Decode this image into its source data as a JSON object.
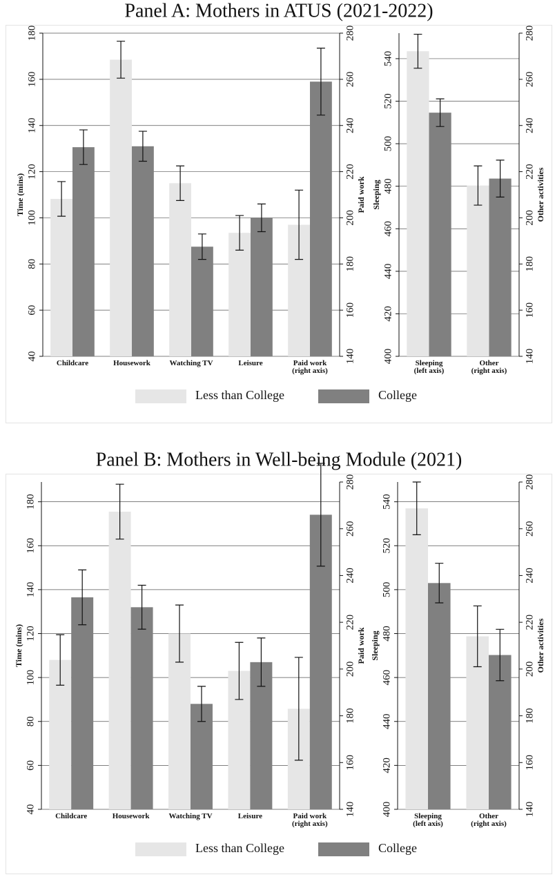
{
  "chart_data": [
    {
      "type": "bar",
      "title": "Panel A: Mothers in ATUS (2021-2022)",
      "categories": [
        "Childcare",
        "Housework",
        "Watching TV",
        "Leisure",
        "Paid work\n(right axis)"
      ],
      "category_axis": [
        "y",
        "y",
        "y",
        "y",
        "y2"
      ],
      "ylabel": "Time (mins)",
      "y2label": "Paid work",
      "ylim": [
        40,
        180
      ],
      "yticks": [
        40,
        60,
        80,
        100,
        120,
        140,
        160,
        180
      ],
      "y2lim": [
        140,
        280
      ],
      "y2ticks": [
        140,
        160,
        180,
        200,
        220,
        240,
        260,
        280
      ],
      "grid": true,
      "series": [
        {
          "name": "Less than College",
          "color": "#e6e6e6",
          "values": [
            108.2,
            168.5,
            115,
            93.5,
            197
          ],
          "errors": [
            7.5,
            8,
            7.5,
            7.5,
            15
          ]
        },
        {
          "name": "College",
          "color": "#808080",
          "values": [
            130.6,
            131,
            87.5,
            100,
            259
          ],
          "errors": [
            7.5,
            6.5,
            5.5,
            6,
            14.5
          ]
        }
      ]
    },
    {
      "type": "bar",
      "categories": [
        "Sleeping\n(left axis)",
        "Other\n(right axis)"
      ],
      "category_axis": [
        "y",
        "y2"
      ],
      "ylabel": "Sleeping",
      "y2label": "Other activities",
      "ylim": [
        400,
        552
      ],
      "yticks": [
        400,
        420,
        440,
        460,
        480,
        500,
        520,
        540
      ],
      "y2lim": [
        140,
        280
      ],
      "y2ticks": [
        140,
        160,
        180,
        200,
        220,
        240,
        260,
        280
      ],
      "grid": true,
      "series": [
        {
          "color": "#e6e6e6",
          "values": [
            543.5,
            214
          ],
          "errors": [
            8,
            8.5
          ]
        },
        {
          "color": "#808080",
          "values": [
            514.6,
            217
          ],
          "errors": [
            6.5,
            8
          ]
        }
      ]
    },
    {
      "type": "bar",
      "title": "Panel B: Mothers in Well-being Module (2021)",
      "categories": [
        "Childcare",
        "Housework",
        "Watching TV",
        "Leisure",
        "Paid work\n(right axis)"
      ],
      "category_axis": [
        "y",
        "y",
        "y",
        "y",
        "y2"
      ],
      "ylabel": "Time (mins)",
      "y2label": "Paid work",
      "ylim": [
        40,
        189
      ],
      "yticks": [
        40,
        60,
        80,
        100,
        120,
        140,
        160,
        180
      ],
      "y2lim": [
        140,
        280
      ],
      "y2ticks": [
        140,
        160,
        180,
        200,
        220,
        240,
        260,
        280
      ],
      "grid": true,
      "series": [
        {
          "name": "Less than College",
          "color": "#e6e6e6",
          "values": [
            108,
            175.5,
            120,
            103,
            183
          ],
          "errors": [
            11.5,
            12.5,
            13,
            13,
            22
          ]
        },
        {
          "name": "College",
          "color": "#808080",
          "values": [
            136.5,
            132,
            88,
            107,
            266
          ],
          "errors": [
            12.5,
            10,
            8,
            11,
            22
          ]
        }
      ]
    },
    {
      "type": "bar",
      "categories": [
        "Sleeping\n(left axis)",
        "Other\n(right axis)"
      ],
      "category_axis": [
        "y",
        "y2"
      ],
      "ylabel": "Sleeping",
      "y2label": "Other activities",
      "ylim": [
        400,
        549
      ],
      "yticks": [
        400,
        420,
        440,
        460,
        480,
        500,
        520,
        540
      ],
      "y2lim": [
        140,
        280
      ],
      "y2ticks": [
        140,
        160,
        180,
        200,
        220,
        240,
        260,
        280
      ],
      "grid": true,
      "series": [
        {
          "color": "#e6e6e6",
          "values": [
            537,
            214
          ],
          "errors": [
            12,
            13
          ]
        },
        {
          "color": "#808080",
          "values": [
            503,
            206
          ],
          "errors": [
            9,
            11
          ]
        }
      ]
    }
  ]
}
